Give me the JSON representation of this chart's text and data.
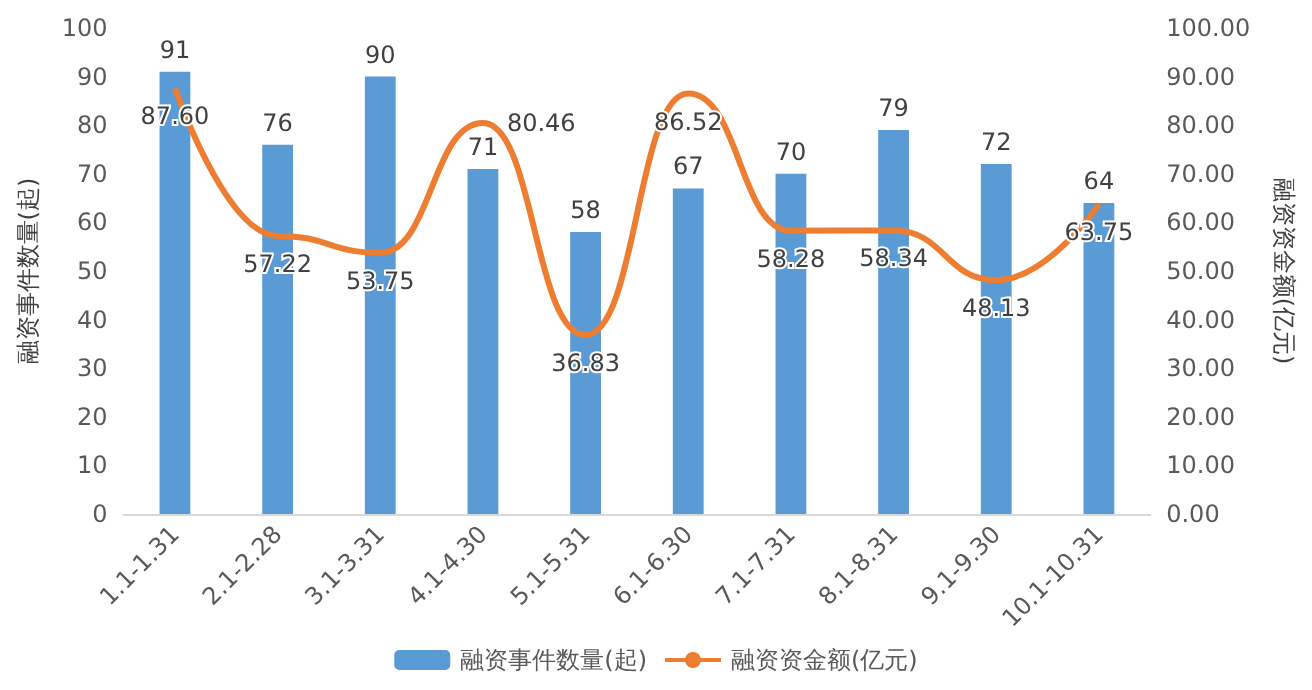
{
  "chart_data": {
    "type": "bar",
    "categories": [
      "1.1-1.31",
      "2.1-2.28",
      "3.1-3.31",
      "4.1-4.30",
      "5.1-5.31",
      "6.1-6.30",
      "7.1-7.31",
      "8.1-8.31",
      "9.1-9.30",
      "10.1-10.31"
    ],
    "series": [
      {
        "name": "融资事件数量(起)",
        "color": "#5b9bd5",
        "values": [
          91,
          76,
          90,
          71,
          58,
          67,
          70,
          79,
          72,
          64
        ]
      },
      {
        "name": "融资资金额(亿元)",
        "type": "line",
        "axis": "y2",
        "color": "#ed7d31",
        "marker": "none",
        "values": [
          87.6,
          57.22,
          53.75,
          80.46,
          36.83,
          86.52,
          58.28,
          58.34,
          48.13,
          63.75
        ],
        "value_labels": [
          "87.60",
          "57.22",
          "53.75",
          "80.46",
          "36.83",
          "86.52",
          "58.28",
          "58.34",
          "48.13",
          "63.75"
        ]
      }
    ],
    "ylabel": "融资事件数量(起)",
    "y2label": "融资资金额(亿元)",
    "ylim": [
      0,
      100
    ],
    "yticks": [
      0,
      10,
      20,
      30,
      40,
      50,
      60,
      70,
      80,
      90,
      100
    ],
    "y2lim": [
      0,
      100
    ],
    "y2ticks": [
      {
        "value": 0,
        "label": "0.00"
      },
      {
        "value": 10,
        "label": "10.00"
      },
      {
        "value": 20,
        "label": "20.00"
      },
      {
        "value": 30,
        "label": "30.00"
      },
      {
        "value": 40,
        "label": "40.00"
      },
      {
        "value": 50,
        "label": "50.00"
      },
      {
        "value": 60,
        "label": "60.00"
      },
      {
        "value": 70,
        "label": "70.00"
      },
      {
        "value": 80,
        "label": "80.00"
      },
      {
        "value": 90,
        "label": "90.00"
      },
      {
        "value": 100,
        "label": "100.00"
      }
    ],
    "data_labels": true,
    "legend": "bottom",
    "grid": false
  }
}
